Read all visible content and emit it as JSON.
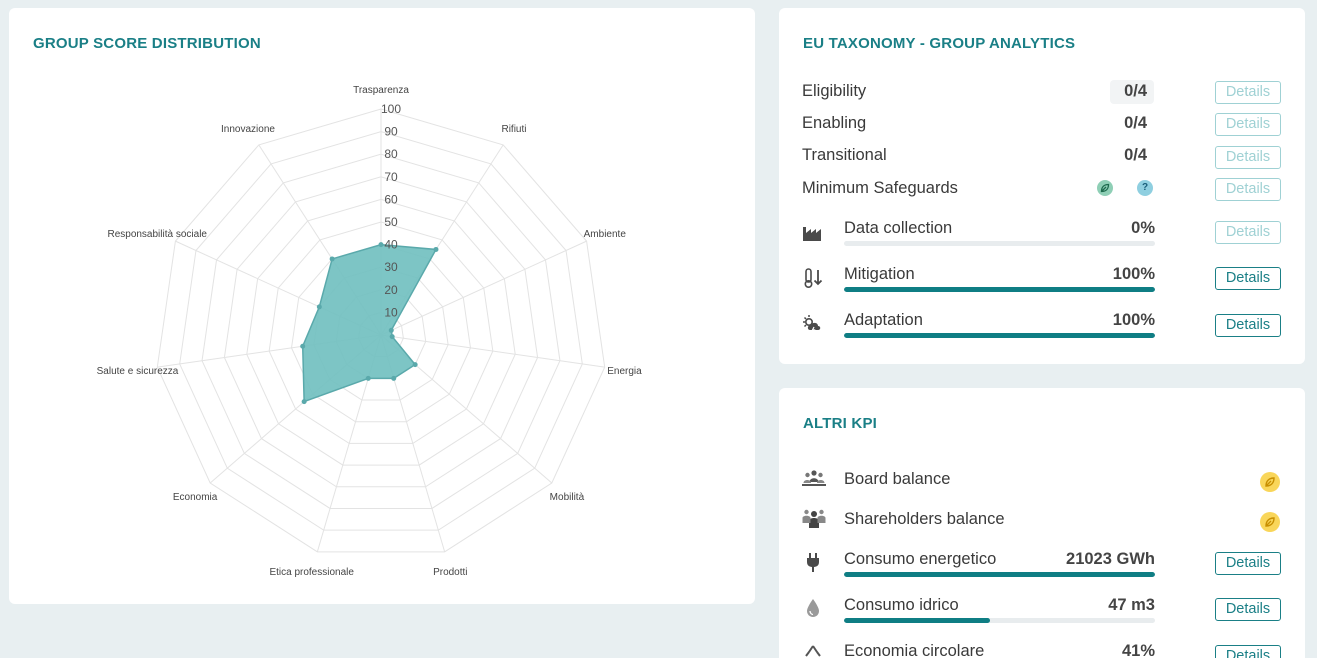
{
  "score_card": {
    "title": "GROUP SCORE DISTRIBUTION",
    "chart_data": {
      "type": "radar",
      "categories": [
        "Trasparenza",
        "Rifiuti",
        "Ambiente",
        "Energia",
        "Mobilità",
        "Prodotti",
        "Etica professionale",
        "Economia",
        "Salute e sicurezza",
        "Responsabilità sociale",
        "Innovazione"
      ],
      "values": [
        40,
        45,
        5,
        5,
        20,
        20,
        20,
        45,
        35,
        30,
        40
      ],
      "ticks": [
        "10",
        "20",
        "30",
        "40",
        "50",
        "60",
        "70",
        "80",
        "90",
        "100"
      ],
      "range": [
        0,
        100
      ],
      "fill_color": "#6fbfbf",
      "stroke_color": "#5aa9ab",
      "grid_color": "#e3e3e3"
    }
  },
  "taxonomy": {
    "title": "EU TAXONOMY - GROUP ANALYTICS",
    "rows": [
      {
        "label": "Eligibility",
        "value": "0/4",
        "button": "Details"
      },
      {
        "label": "Enabling",
        "value": "0/4",
        "button": "Details"
      },
      {
        "label": "Transitional",
        "value": "0/4",
        "button": "Details"
      },
      {
        "label": "Minimum Safeguards",
        "value": "",
        "button": "Details",
        "icons": [
          "leaf-icon",
          "help-icon"
        ],
        "help_glyph": "?"
      }
    ],
    "bars": [
      {
        "label": "Data collection",
        "value": "0%",
        "progress": 0,
        "button": "Details",
        "icon": "factory-icon"
      },
      {
        "label": "Mitigation",
        "value": "100%",
        "progress": 100,
        "button": "Details",
        "icon": "thermometer-icon"
      },
      {
        "label": "Adaptation",
        "value": "100%",
        "progress": 100,
        "button": "Details",
        "icon": "storm-icon"
      }
    ]
  },
  "kpi": {
    "title": "ALTRI KPI",
    "badges": [
      {
        "label": "Board balance",
        "icon": "board-icon"
      },
      {
        "label": "Shareholders balance",
        "icon": "shareholders-icon"
      }
    ],
    "bars": [
      {
        "label": "Consumo energetico",
        "value": "21023 GWh",
        "progress": 100,
        "button": "Details",
        "icon": "plug-icon"
      },
      {
        "label": "Consumo idrico",
        "value": "47 m3",
        "progress": 47,
        "button": "Details",
        "icon": "water-drop-icon"
      },
      {
        "label": "Economia circolare",
        "value": "41%",
        "progress": 41,
        "button": "Details",
        "icon": "recycle-icon"
      }
    ]
  },
  "colors": {
    "accent": "#1a7f86",
    "bar": "#0f7e84",
    "background": "#e8eff1"
  }
}
